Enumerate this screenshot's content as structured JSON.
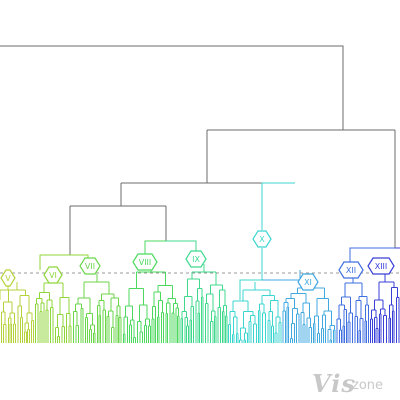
{
  "dendrogram": {
    "cluster_labels": [
      "V",
      "VI",
      "VII",
      "VIII",
      "IX",
      "X",
      "XI",
      "XII",
      "XIII"
    ],
    "colors": {
      "trunk": "#6b6b6b",
      "cut_line": "#9a9a9a",
      "cluster_V": "#b5d33c",
      "cluster_VI": "#8fd63a",
      "cluster_VII": "#6ad64a",
      "cluster_VIII": "#4cd95e",
      "cluster_IX": "#3fd98e",
      "cluster_X": "#3bd6d0",
      "cluster_XI": "#42a8e0",
      "cluster_XII": "#3f6fe0",
      "cluster_XIII": "#3a3fd8"
    }
  },
  "watermark": {
    "main": "Vis",
    "sub": "zone"
  }
}
